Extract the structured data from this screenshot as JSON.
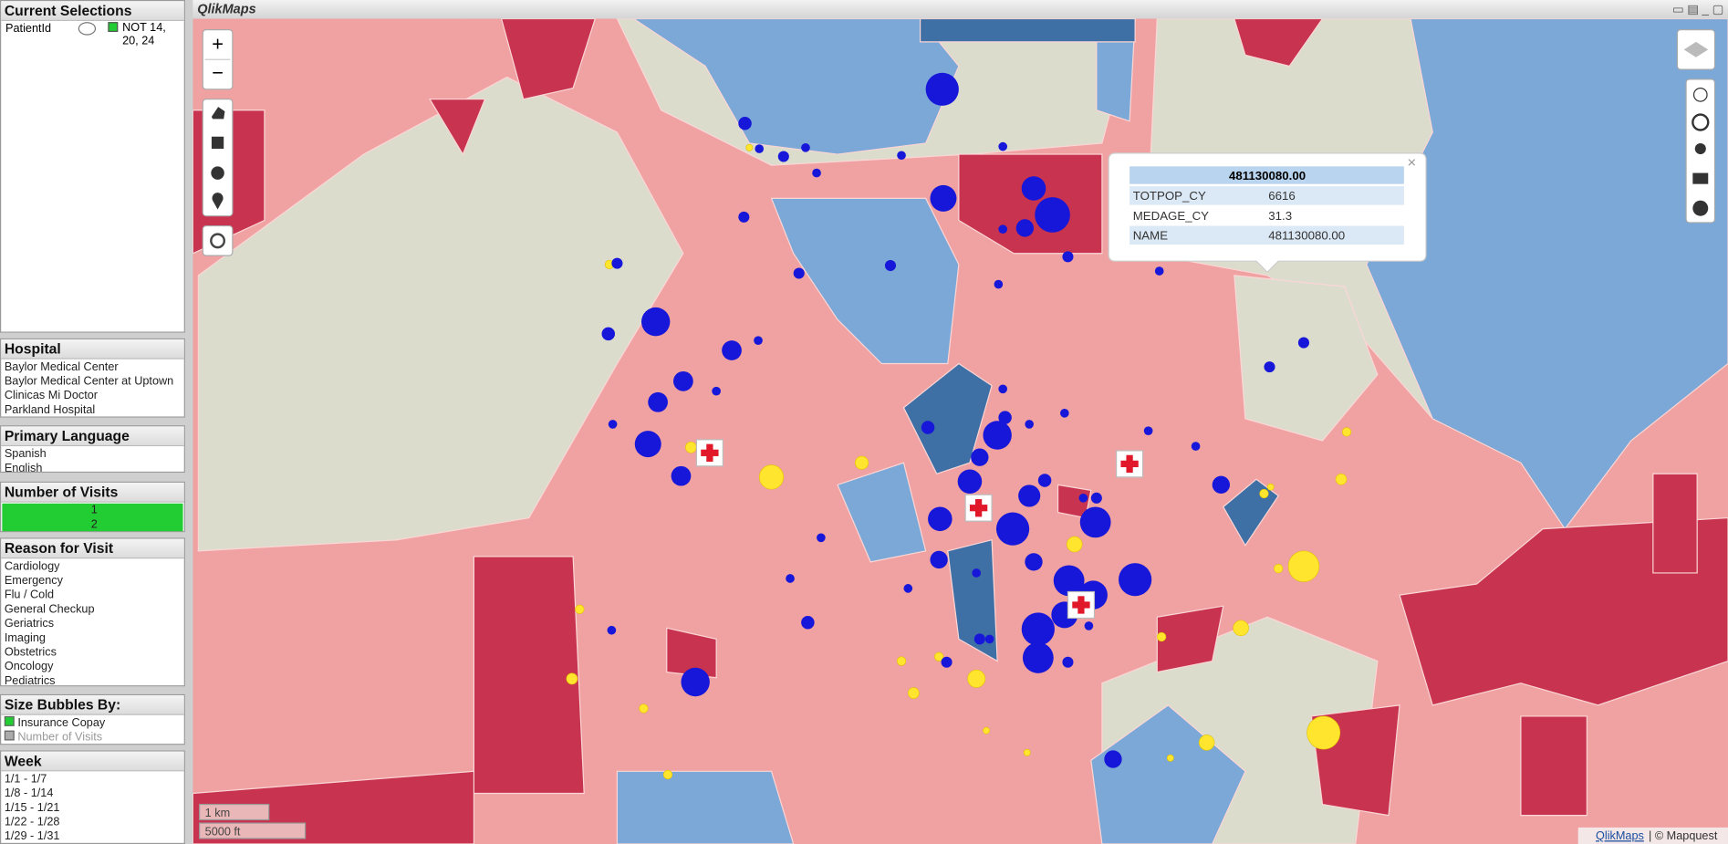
{
  "sidebar": {
    "current_selections": {
      "title": "Current Selections",
      "field": "PatientId",
      "value": "NOT 14, 20, 24"
    },
    "listboxes": [
      {
        "title": "Hospital",
        "items": [
          "Baylor Medical Center",
          "Baylor Medical Center at Uptown",
          "Clinicas Mi Doctor",
          "Parkland Hospital"
        ]
      },
      {
        "title": "Primary Language",
        "items": [
          "Spanish",
          "English"
        ]
      },
      {
        "title": "Number of Visits",
        "items": [
          "1",
          "2"
        ]
      },
      {
        "title": "Reason for Visit",
        "items": [
          "Cardiology",
          "Emergency",
          "Flu / Cold",
          "General Checkup",
          "Geriatrics",
          "Imaging",
          "Obstetrics",
          "Oncology",
          "Pediatrics"
        ]
      },
      {
        "title": "Size Bubbles By:",
        "items": [
          "Insurance Copay",
          "Number of Visits"
        ]
      },
      {
        "title": "Week",
        "items": [
          "1/1 - 1/7",
          "1/8 - 1/14",
          "1/15 - 1/21",
          "1/22 - 1/28",
          "1/29 - 1/31"
        ]
      }
    ]
  },
  "map": {
    "title": "QlikMaps",
    "zoom_in": "+",
    "zoom_out": "−",
    "popup": {
      "title": "481130080.00",
      "close": "×",
      "rows": [
        [
          "TOTPOP_CY",
          "6616"
        ],
        [
          "MEDAGE_CY",
          "31.3"
        ],
        [
          "NAME",
          "481130080.00"
        ]
      ]
    },
    "scale": [
      "1 km",
      "5000 ft"
    ],
    "attribution": {
      "link": "QlikMaps",
      "text": "| © Mapquest"
    }
  }
}
